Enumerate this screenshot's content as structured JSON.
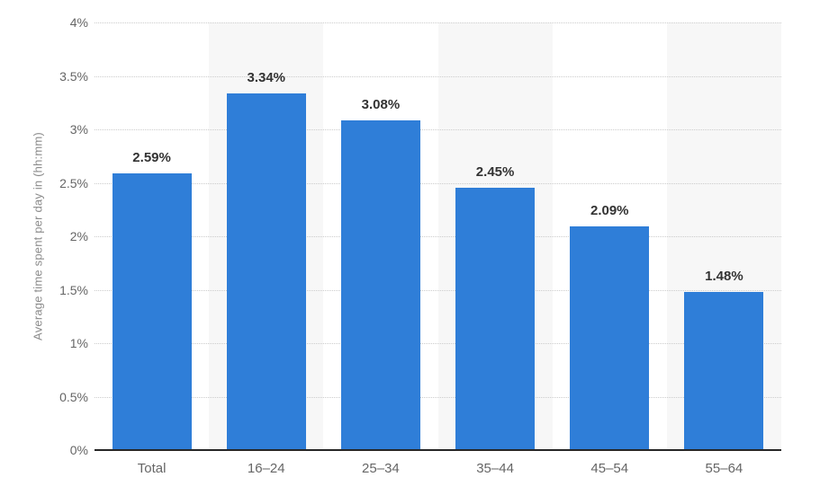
{
  "chart_data": {
    "type": "bar",
    "title": "",
    "xlabel": "",
    "ylabel": "Average time spent per day in (hh:mm)",
    "categories": [
      "Total",
      "16–24",
      "25–34",
      "35–44",
      "45–54",
      "55–64"
    ],
    "values": [
      2.59,
      3.34,
      3.08,
      2.45,
      2.09,
      1.48
    ],
    "value_labels": [
      "2.59%",
      "3.34%",
      "3.08%",
      "2.45%",
      "2.09%",
      "1.48%"
    ],
    "ylim": [
      0,
      4
    ],
    "ytick_values": [
      0,
      0.5,
      1,
      1.5,
      2,
      2.5,
      3,
      3.5,
      4
    ],
    "ytick_labels": [
      "0%",
      "0.5%",
      "1%",
      "1.5%",
      "2%",
      "2.5%",
      "3%",
      "3.5%",
      "4%"
    ],
    "grid": "horizontal-dotted",
    "legend": "none",
    "band_columns": [
      1,
      3,
      5
    ],
    "colors": {
      "bar": "#2f7ed8",
      "band": "#f7f7f7",
      "gridline": "#cccccc",
      "axis_line": "#262626",
      "tick_label": "#666666",
      "value_label": "#333333",
      "axis_title": "#8c8c8c"
    }
  }
}
